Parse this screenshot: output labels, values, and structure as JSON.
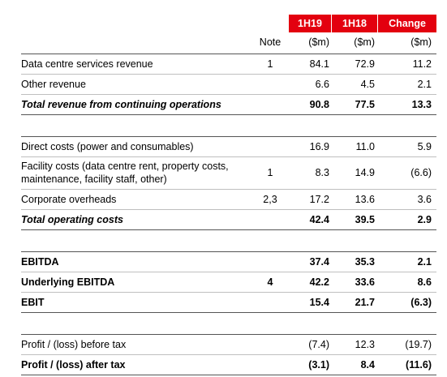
{
  "table": {
    "header": [
      "1H19",
      "1H18",
      "Change"
    ],
    "subheader": [
      "Note",
      "($m)",
      "($m)",
      "($m)"
    ],
    "sections": [
      [
        [
          "Data centre services revenue",
          "1",
          "84.1",
          "72.9",
          "11.2"
        ],
        [
          "Other revenue",
          null,
          "6.6",
          "4.5",
          "2.1"
        ],
        [
          "Total revenue from continuing operations",
          null,
          "90.8",
          "77.5",
          "13.3"
        ]
      ],
      [
        [
          "Direct costs (power and consumables)",
          null,
          "16.9",
          "11.0",
          "5.9"
        ],
        [
          "Facility costs (data centre rent, property costs, maintenance, facility staff, other)",
          "1",
          "8.3",
          "14.9",
          "(6.6)"
        ],
        [
          "Corporate overheads",
          "2,3",
          "17.2",
          "13.6",
          "3.6"
        ],
        [
          "Total operating costs",
          null,
          "42.4",
          "39.5",
          "2.9"
        ]
      ],
      [
        [
          "EBITDA",
          null,
          "37.4",
          "35.3",
          "2.1"
        ],
        [
          "Underlying EBITDA",
          "4",
          "42.2",
          "33.6",
          "8.6"
        ],
        [
          "EBIT",
          null,
          "15.4",
          "21.7",
          "(6.3)"
        ]
      ],
      [
        [
          "Profit / (loss) before tax",
          null,
          "(7.4)",
          "12.3",
          "(19.7)"
        ],
        [
          "Profit / (loss) after tax",
          null,
          "(3.1)",
          "8.4",
          "(11.6)"
        ]
      ]
    ]
  }
}
